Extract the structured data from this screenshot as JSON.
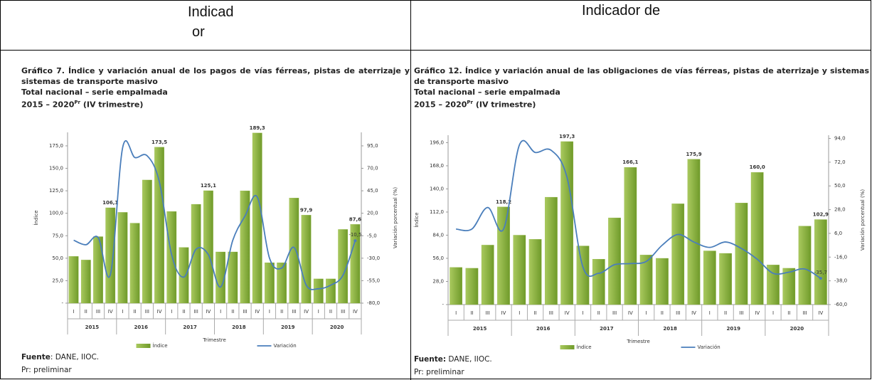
{
  "table": {
    "headers": [
      [
        "Indicad",
        "or"
      ],
      [
        "Indicador de"
      ]
    ]
  },
  "chart_data": [
    {
      "type": "bar",
      "title": "Gráfico 7. Índice y variación anual de los pagos de vías férreas, pistas de aterrizaje y sistemas de transporte masivo",
      "subtitle": "Total nacional – serie empalmada",
      "period": "2015 – 2020",
      "period_sup": "Pr",
      "period_note": "(IV trimestre)",
      "categories": [
        "I",
        "II",
        "III",
        "IV",
        "I",
        "II",
        "III",
        "IV",
        "I",
        "II",
        "III",
        "IV",
        "I",
        "II",
        "III",
        "IV",
        "I",
        "II",
        "III",
        "IV",
        "I",
        "II",
        "III",
        "IV"
      ],
      "years": [
        "2015",
        "2016",
        "2017",
        "2018",
        "2019",
        "2020"
      ],
      "xlabel": "Trimestre",
      "ylabel": "Índice",
      "y2label": "Variación porcentual (%)",
      "ylim": [
        0,
        190
      ],
      "yticks": [
        {
          "value": 0,
          "label": "-"
        },
        {
          "value": 25,
          "label": "25,0"
        },
        {
          "value": 50,
          "label": "50,0"
        },
        {
          "value": 75,
          "label": "75,0"
        },
        {
          "value": 100,
          "label": "100,0"
        },
        {
          "value": 125,
          "label": "125,0"
        },
        {
          "value": 150,
          "label": "150,0"
        },
        {
          "value": 175,
          "label": "175,0"
        }
      ],
      "y2lim": [
        -80,
        110
      ],
      "y2ticks": [
        {
          "value": -80,
          "label": "-80,0"
        },
        {
          "value": -55,
          "label": "-55,0"
        },
        {
          "value": -30,
          "label": "-30,0"
        },
        {
          "value": -5,
          "label": "-5,0"
        },
        {
          "value": 20,
          "label": "20,0"
        },
        {
          "value": 45,
          "label": "45,0"
        },
        {
          "value": 70,
          "label": "70,0"
        },
        {
          "value": 95,
          "label": "95,0"
        }
      ],
      "series": [
        {
          "name": "Índice",
          "type": "bar",
          "color": "#8db33b",
          "values": [
            52,
            48,
            74,
            106.1,
            101,
            89,
            137,
            173.5,
            102,
            62,
            110,
            125.1,
            57,
            57,
            125,
            189.3,
            45,
            45,
            117,
            97.9,
            27,
            27,
            82,
            87.6
          ],
          "value_labels": [
            null,
            null,
            null,
            "106,1",
            null,
            null,
            null,
            "173,5",
            null,
            null,
            null,
            "125,1",
            null,
            null,
            null,
            "189,3",
            null,
            null,
            null,
            "97,9",
            null,
            null,
            null,
            "87,6"
          ]
        },
        {
          "name": "Variación",
          "type": "line",
          "axis": "y2",
          "color": "#4a7ebb",
          "values": [
            -10,
            -15,
            -7,
            -48,
            93,
            82,
            84,
            55,
            -26,
            -51,
            -20,
            -26,
            -62,
            -10,
            17,
            38,
            -30,
            -41,
            -18,
            -60,
            -64,
            -60,
            -49,
            -10.5
          ],
          "value_labels": [
            null,
            null,
            null,
            null,
            null,
            null,
            null,
            null,
            null,
            null,
            null,
            null,
            null,
            null,
            null,
            null,
            null,
            null,
            null,
            null,
            null,
            null,
            null,
            "-10,5"
          ]
        }
      ],
      "source_label": "Fuente",
      "source": ": DANE, IIOC.",
      "note": "Pr: preliminar"
    },
    {
      "type": "bar",
      "title": "Gráfico 12. Índice y variación anual de las obligaciones de vías férreas, pistas de aterrizaje y sistemas de transporte masivo",
      "subtitle": "Total nacional – serie empalmada",
      "period": "2015 – 2020",
      "period_sup": "Pr",
      "period_note": "(IV trimestre)",
      "categories": [
        "I",
        "II",
        "III",
        "IV",
        "I",
        "II",
        "III",
        "IV",
        "I",
        "II",
        "III",
        "IV",
        "I",
        "II",
        "III",
        "IV",
        "I",
        "II",
        "III",
        "IV",
        "I",
        "II",
        "III",
        "IV"
      ],
      "years": [
        "2015",
        "2016",
        "2017",
        "2018",
        "2019",
        "2020"
      ],
      "xlabel": "Trimestre",
      "ylabel": "Índice",
      "y2label": "Variación porcentual (%)",
      "ylim": [
        0,
        205
      ],
      "yticks": [
        {
          "value": 0,
          "label": "-"
        },
        {
          "value": 28,
          "label": "28,0"
        },
        {
          "value": 56,
          "label": "56,0"
        },
        {
          "value": 84,
          "label": "84,0"
        },
        {
          "value": 112,
          "label": "112,0"
        },
        {
          "value": 140,
          "label": "140,0"
        },
        {
          "value": 168,
          "label": "168,0"
        },
        {
          "value": 196,
          "label": "196,0"
        }
      ],
      "y2lim": [
        -60,
        97
      ],
      "y2ticks": [
        {
          "value": -60,
          "label": "-60,0"
        },
        {
          "value": -38,
          "label": "-38,0"
        },
        {
          "value": -16,
          "label": "-16,0"
        },
        {
          "value": 6,
          "label": "6,0"
        },
        {
          "value": 28,
          "label": "28,0"
        },
        {
          "value": 50,
          "label": "50,0"
        },
        {
          "value": 72,
          "label": "72,0"
        },
        {
          "value": 94,
          "label": "94,0"
        }
      ],
      "series": [
        {
          "name": "Índice",
          "type": "bar",
          "color": "#8db33b",
          "values": [
            45,
            44,
            72,
            118.2,
            84,
            79,
            130,
            197.3,
            71,
            55,
            105,
            166.1,
            60,
            56,
            122,
            175.9,
            65,
            62,
            123,
            160.0,
            48,
            44,
            95,
            102.9
          ],
          "value_labels": [
            null,
            null,
            null,
            "118,2",
            null,
            null,
            null,
            "197,3",
            null,
            null,
            null,
            "166,1",
            null,
            null,
            null,
            "175,9",
            null,
            null,
            null,
            "160,0",
            null,
            null,
            null,
            "102,9"
          ]
        },
        {
          "name": "Variación",
          "type": "line",
          "axis": "y2",
          "color": "#4a7ebb",
          "values": [
            10,
            10,
            30,
            10,
            88,
            81,
            83,
            58,
            -25,
            -31,
            -23,
            -22,
            -20,
            -5,
            5,
            -2,
            -7,
            -2,
            -8,
            -18,
            -31,
            -30,
            -27,
            -35.7
          ],
          "value_labels": [
            null,
            null,
            null,
            null,
            null,
            null,
            null,
            null,
            null,
            null,
            null,
            null,
            null,
            null,
            null,
            null,
            null,
            null,
            null,
            null,
            null,
            null,
            null,
            "-35,7"
          ]
        }
      ],
      "source_label": "Fuente:",
      "source": " DANE, IIOC.",
      "note": "Pr: preliminar"
    }
  ]
}
